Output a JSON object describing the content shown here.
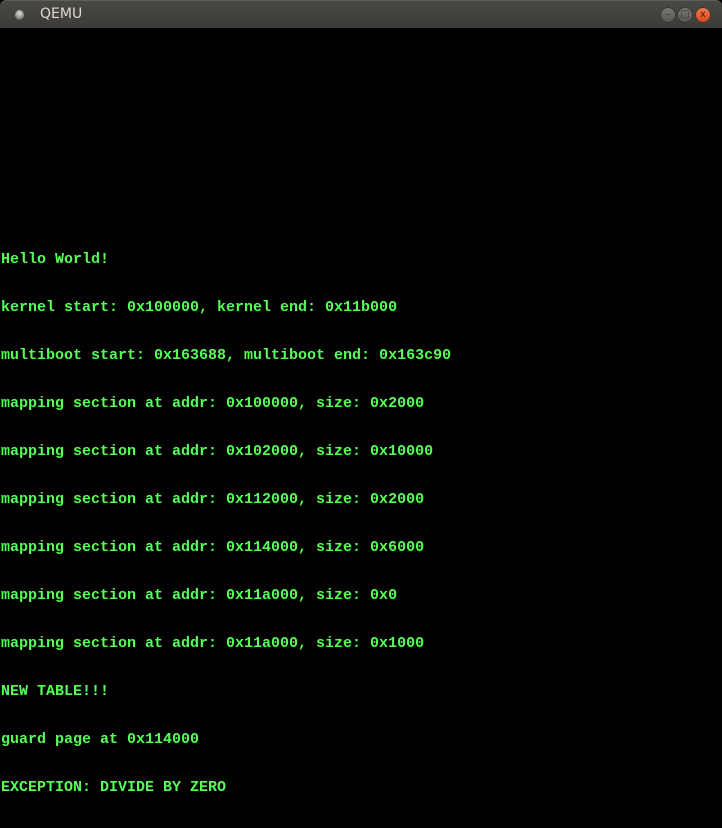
{
  "window": {
    "title": "QEMU",
    "buttons": {
      "minimize": "–",
      "maximize": "□",
      "close": "x"
    }
  },
  "colors": {
    "text": "#55ff55",
    "background": "#000000",
    "close_button": "#e5572a"
  },
  "console": {
    "lines": [
      "Hello World!",
      "kernel start: 0x100000, kernel end: 0x11b000",
      "multiboot start: 0x163688, multiboot end: 0x163c90",
      "mapping section at addr: 0x100000, size: 0x2000",
      "mapping section at addr: 0x102000, size: 0x10000",
      "mapping section at addr: 0x112000, size: 0x2000",
      "mapping section at addr: 0x114000, size: 0x6000",
      "mapping section at addr: 0x11a000, size: 0x0",
      "mapping section at addr: 0x11a000, size: 0x1000",
      "NEW TABLE!!!",
      "guard page at 0x114000",
      "EXCEPTION: DIVIDE BY ZERO"
    ]
  }
}
